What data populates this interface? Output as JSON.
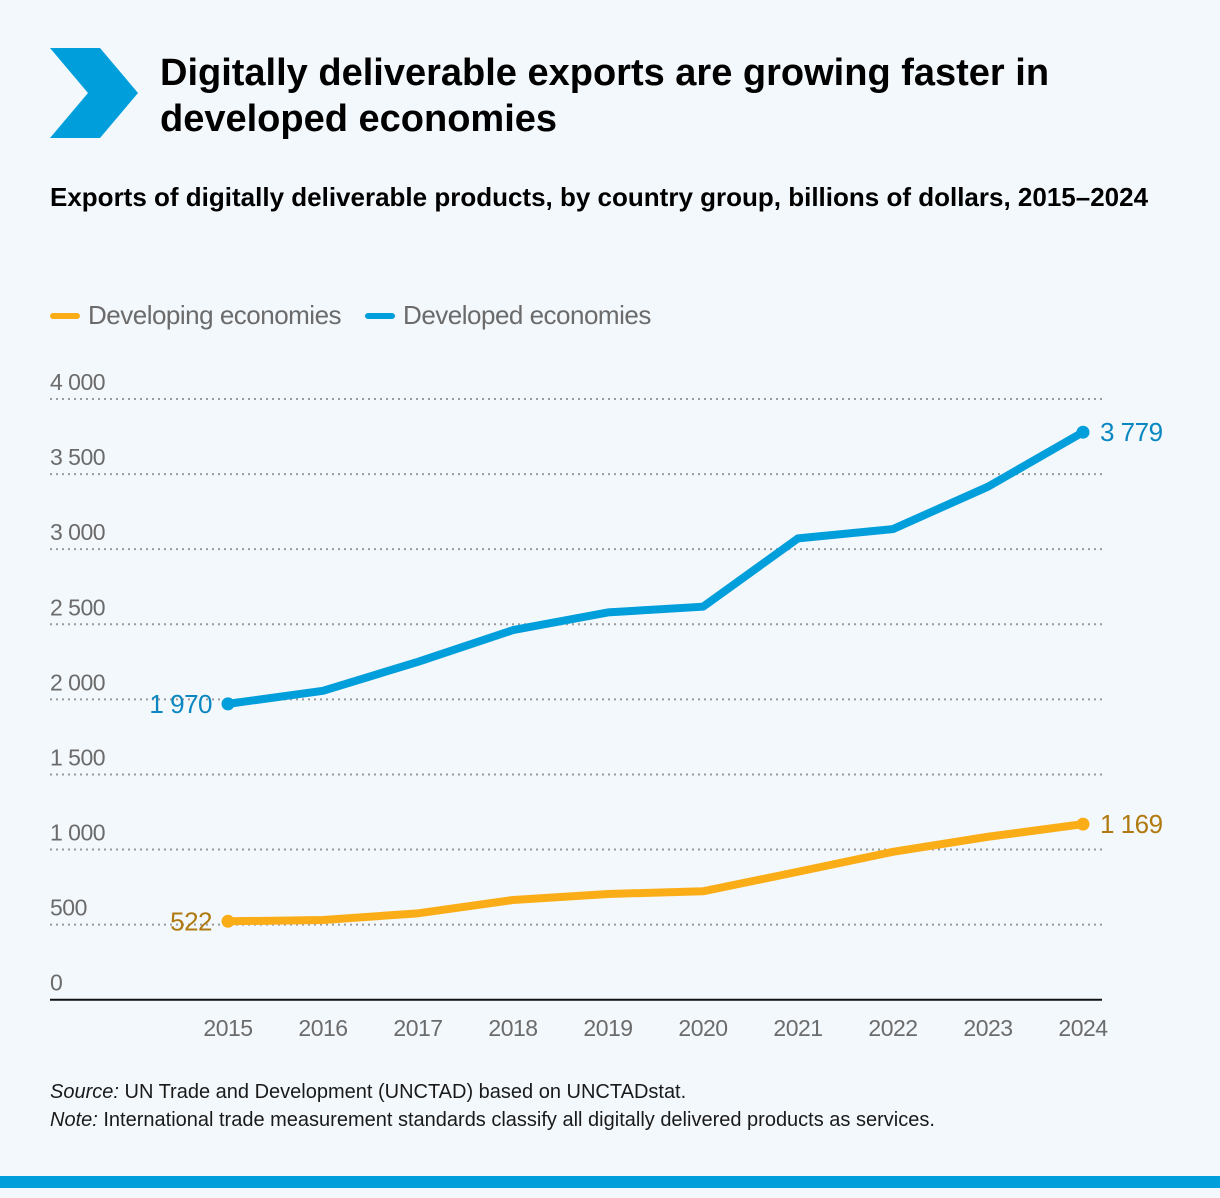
{
  "header": {
    "title": "Digitally deliverable exports are growing faster in developed economies",
    "subtitle": "Exports of digitally deliverable products, by country group, billions of dollars, 2015–2024",
    "accent_color": "#009edb"
  },
  "chart_data": {
    "type": "line",
    "title": "Exports of digitally deliverable products, by country group, billions of dollars, 2015–2024",
    "x": [
      "2015",
      "2016",
      "2017",
      "2018",
      "2019",
      "2020",
      "2021",
      "2022",
      "2023",
      "2024"
    ],
    "ylim": [
      0,
      4000
    ],
    "yticks": [
      0,
      500,
      1000,
      1500,
      2000,
      2500,
      3000,
      3500,
      4000
    ],
    "ytick_labels": [
      "0",
      "500",
      "1 000",
      "1 500",
      "2 000",
      "2 500",
      "3 000",
      "3 500",
      "4 000"
    ],
    "grid": "horizontal dotted",
    "legend_position": "top-left",
    "series": [
      {
        "name": "Developing economies",
        "color": "#fbad18",
        "label_color": "#b07a10",
        "values": [
          522,
          531,
          575,
          664,
          704,
          722,
          852,
          985,
          1085,
          1169
        ],
        "end_labels": {
          "first": "522",
          "last": "1 169"
        }
      },
      {
        "name": "Developed economies",
        "color": "#009edb",
        "label_color": "#0a87c0",
        "values": [
          1970,
          2057,
          2250,
          2461,
          2579,
          2617,
          3072,
          3134,
          3416,
          3779
        ],
        "end_labels": {
          "first": "1 970",
          "last": "3 779"
        }
      }
    ]
  },
  "footer": {
    "source_label": "Source:",
    "source_text": " UN Trade and Development (UNCTAD) based on UNCTADstat.",
    "note_label": "Note:",
    "note_text": " International trade measurement standards classify all digitally delivered products as services."
  }
}
